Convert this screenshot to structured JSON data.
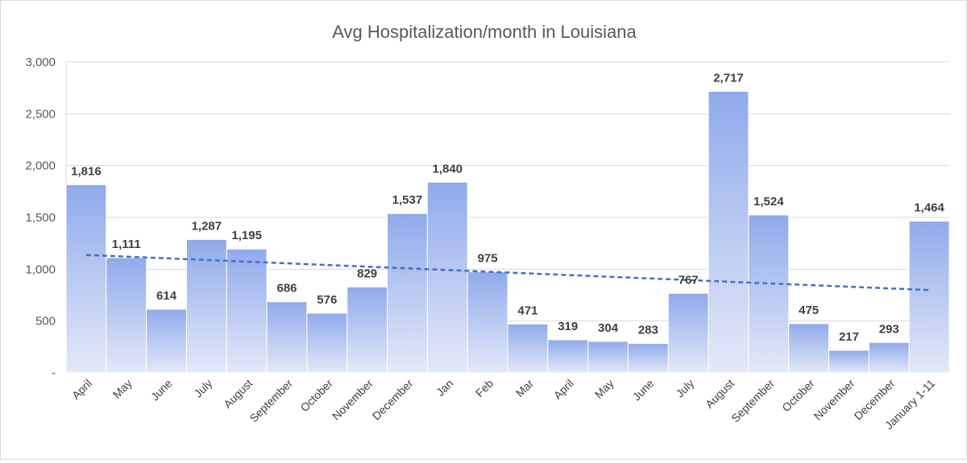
{
  "chart_data": {
    "type": "bar",
    "title": "Avg Hospitalization/month in Louisiana",
    "xlabel": "",
    "ylabel": "",
    "ylim": [
      0,
      3000
    ],
    "yticks": [
      0,
      500,
      1000,
      1500,
      2000,
      2500,
      3000
    ],
    "ytick_labels": [
      "-",
      "500",
      "1,000",
      "1,500",
      "2,000",
      "2,500",
      "3,000"
    ],
    "grid": true,
    "trendline": "linear",
    "colors": {
      "bar_top": "#8faaeb",
      "bar_bottom": "#e4e9f8",
      "trend": "#4472c4",
      "grid": "#d9d9d9"
    },
    "categories": [
      "April",
      "May",
      "June",
      "July",
      "August",
      "September",
      "October",
      "November",
      "December",
      "Jan",
      "Feb",
      "Mar",
      "April",
      "May",
      "June",
      "July",
      "August",
      "September",
      "October",
      "November",
      "December",
      "January 1-11"
    ],
    "values": [
      1816,
      1111,
      614,
      1287,
      1195,
      686,
      576,
      829,
      1537,
      1840,
      975,
      471,
      319,
      304,
      283,
      767,
      2717,
      1524,
      475,
      217,
      293,
      1464
    ],
    "data_labels": [
      "1,816",
      "1,111",
      "614",
      "1,287",
      "1,195",
      "686",
      "576",
      "829",
      "1,537",
      "1,840",
      "975",
      "471",
      "319",
      "304",
      "283",
      "767",
      "2,717",
      "1,524",
      "475",
      "217",
      "293",
      "1,464"
    ]
  }
}
